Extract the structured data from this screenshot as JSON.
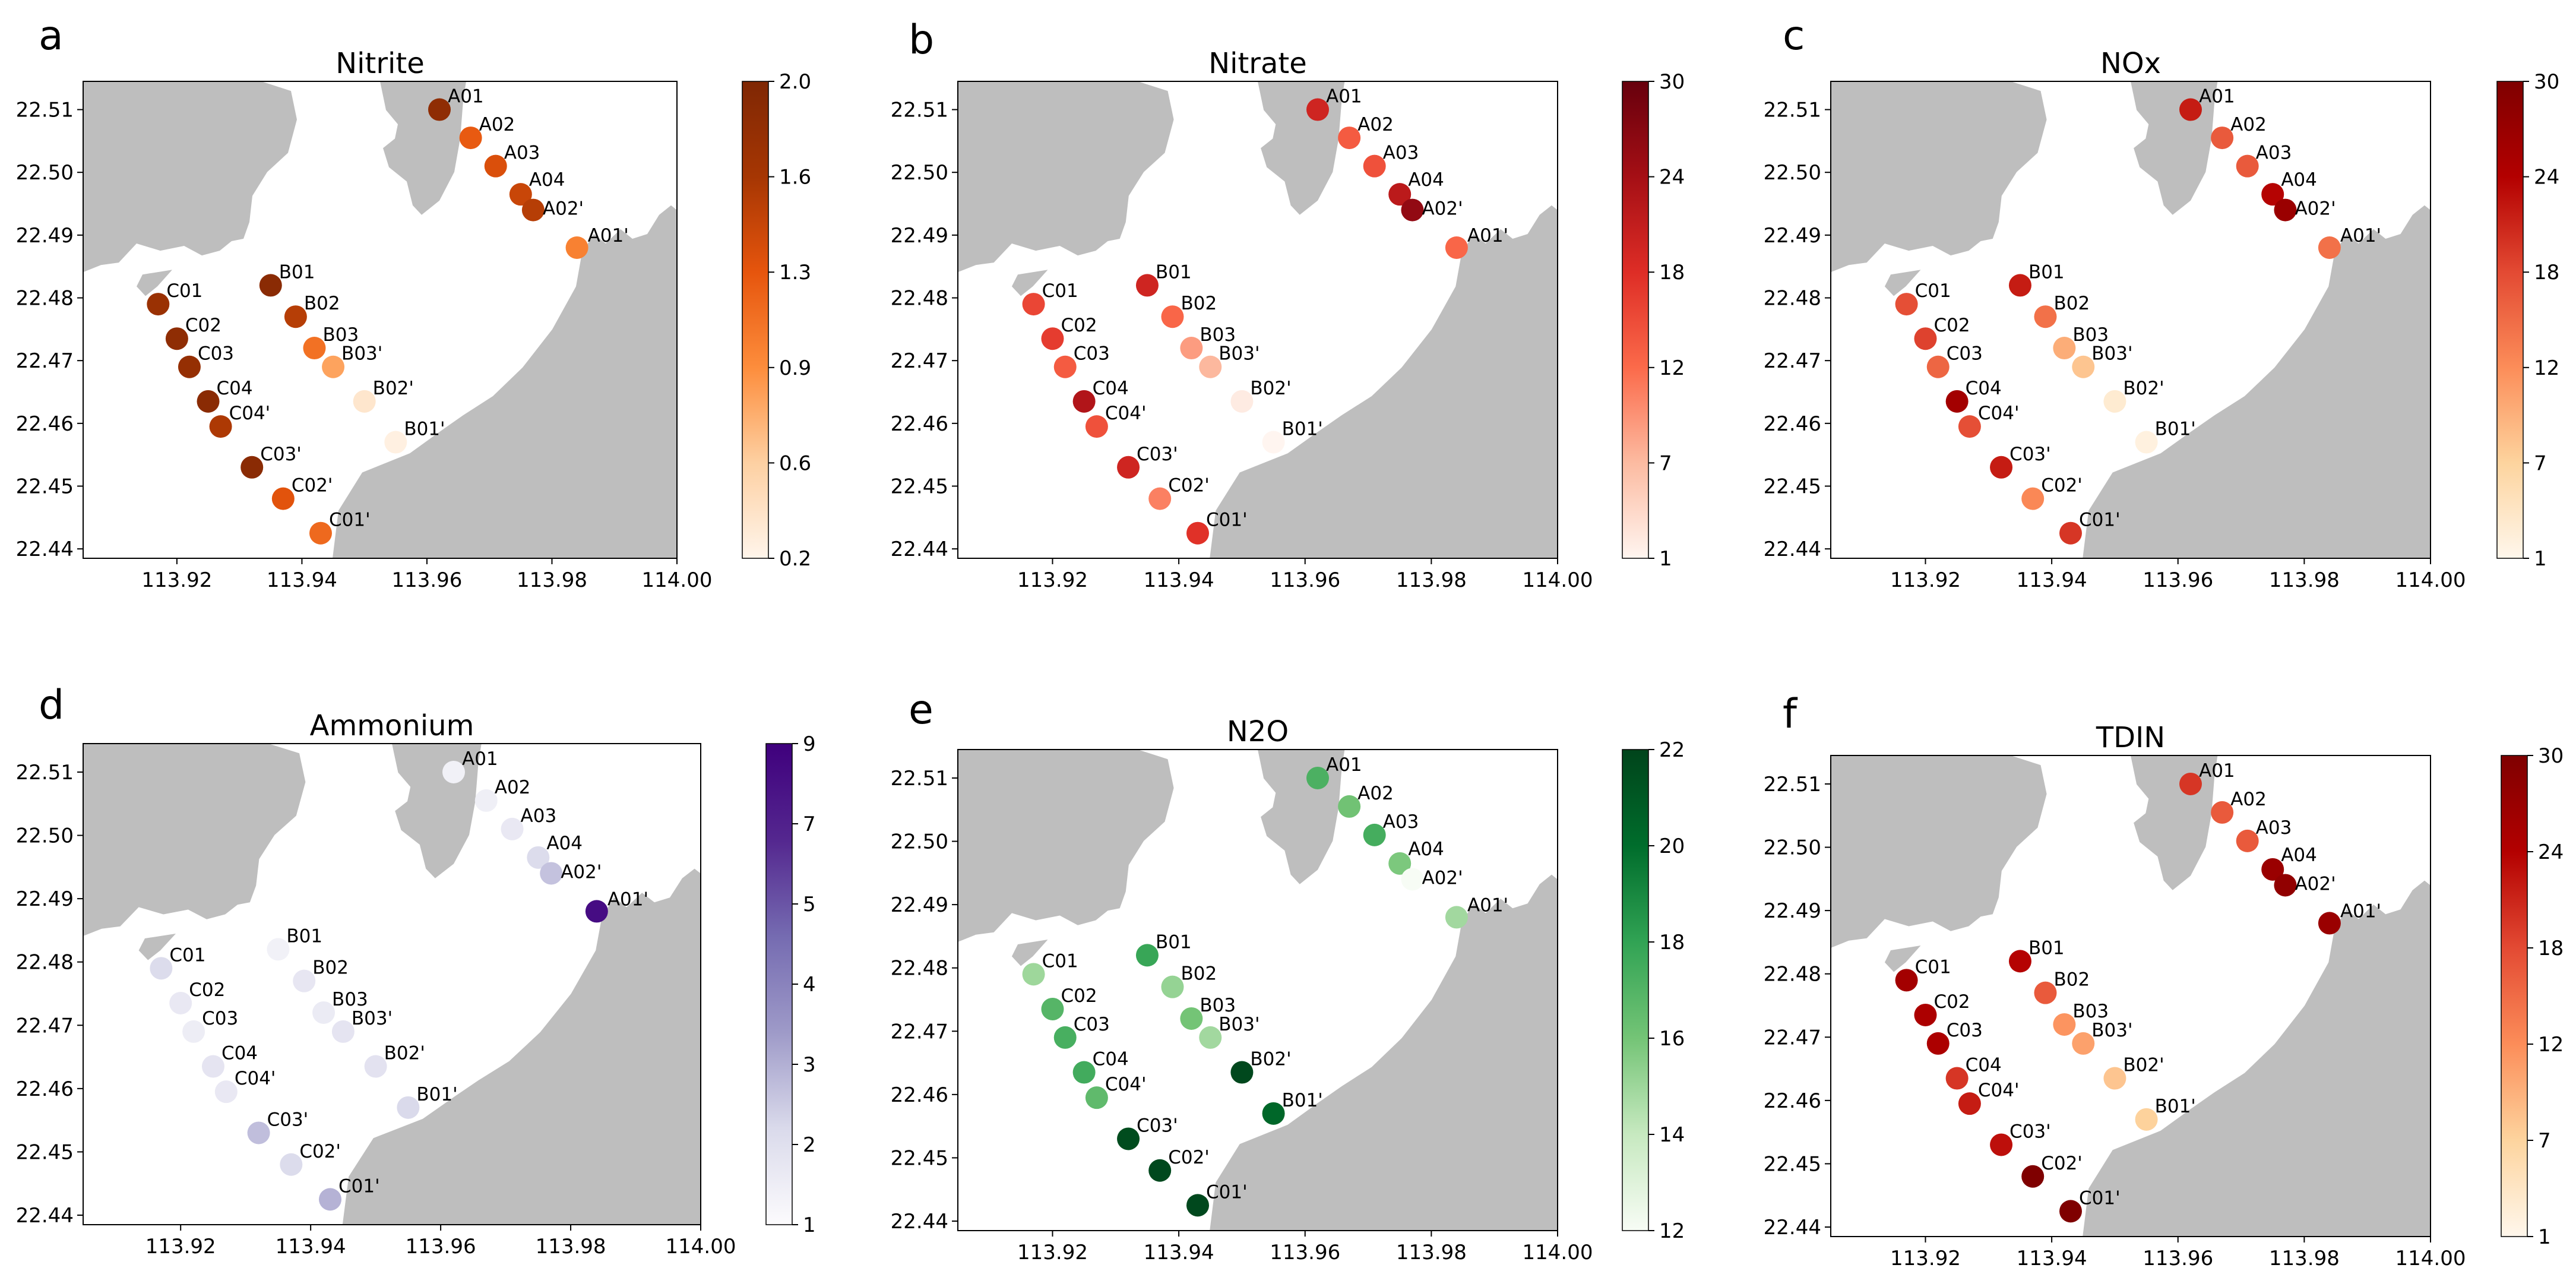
{
  "colors": {
    "land": "#bebebe",
    "Oranges": [
      "#fff5eb",
      "#fdd0a2",
      "#fd8d3c",
      "#e6550d",
      "#a63603",
      "#7f2704"
    ],
    "Reds": [
      "#fff5f0",
      "#fcbba1",
      "#fb6a4a",
      "#de2d26",
      "#a50f15",
      "#67000d"
    ],
    "OrRd": [
      "#fff7ec",
      "#fdd49e",
      "#fc8d59",
      "#e34a33",
      "#b30000",
      "#7f0000"
    ],
    "Purples": [
      "#fcfbfd",
      "#dadaeb",
      "#9e9ac8",
      "#756bb1",
      "#54278f",
      "#3f007d"
    ],
    "Greens": [
      "#f7fcf5",
      "#c7e9c0",
      "#74c476",
      "#31a354",
      "#006d2c",
      "#00441b"
    ]
  },
  "stations": [
    "A01",
    "A02",
    "A03",
    "A04",
    "A02'",
    "A01'",
    "B01",
    "B02",
    "B03",
    "B03'",
    "B02'",
    "B01'",
    "C01",
    "C02",
    "C03",
    "C04",
    "C04'",
    "C03'",
    "C02'",
    "C01'"
  ],
  "station_lon": [
    113.962,
    113.967,
    113.971,
    113.975,
    113.977,
    113.984,
    113.935,
    113.939,
    113.942,
    113.945,
    113.95,
    113.955,
    113.917,
    113.92,
    113.922,
    113.925,
    113.927,
    113.932,
    113.937,
    113.943
  ],
  "station_lat": [
    22.51,
    22.5055,
    22.501,
    22.4965,
    22.494,
    22.488,
    22.482,
    22.477,
    22.472,
    22.469,
    22.4635,
    22.457,
    22.479,
    22.4735,
    22.469,
    22.4635,
    22.4595,
    22.453,
    22.448,
    22.4425
  ],
  "chart_data": [
    {
      "panel_letter": "a",
      "type": "scatter",
      "title": "Nitrite",
      "cmap": "Oranges",
      "xlim": [
        113.905,
        114.0
      ],
      "ylim": [
        22.4385,
        22.5145
      ],
      "xticks": [
        "113.92",
        "113.94",
        "113.96",
        "113.98",
        "114.00"
      ],
      "yticks": [
        "22.44",
        "22.45",
        "22.46",
        "22.47",
        "22.48",
        "22.49",
        "22.50",
        "22.51"
      ],
      "clim": [
        0.2,
        2.0
      ],
      "cbar_ticks": [
        "0.2",
        "0.6",
        "0.9",
        "1.3",
        "1.6",
        "2.0"
      ],
      "values": [
        1.85,
        1.25,
        1.35,
        1.45,
        1.55,
        1.0,
        1.9,
        1.55,
        1.1,
        0.8,
        0.35,
        0.25,
        1.75,
        1.85,
        1.8,
        1.9,
        1.6,
        1.9,
        1.3,
        1.15
      ]
    },
    {
      "panel_letter": "b",
      "type": "scatter",
      "title": "Nitrate",
      "cmap": "Reds",
      "xlim": [
        113.905,
        114.0
      ],
      "ylim": [
        22.4385,
        22.5145
      ],
      "xticks": [
        "113.92",
        "113.94",
        "113.96",
        "113.98",
        "114.00"
      ],
      "yticks": [
        "22.44",
        "22.45",
        "22.46",
        "22.47",
        "22.48",
        "22.49",
        "22.50",
        "22.51"
      ],
      "clim": [
        1,
        30
      ],
      "cbar_ticks": [
        "1",
        "7",
        "12",
        "18",
        "24",
        "30"
      ],
      "values": [
        20,
        14,
        15,
        22,
        26,
        13,
        20,
        13,
        9,
        7,
        2,
        1,
        16,
        17,
        14,
        23,
        15,
        20,
        11,
        18
      ]
    },
    {
      "panel_letter": "c",
      "type": "scatter",
      "title": "NOx",
      "cmap": "OrRd",
      "xlim": [
        113.905,
        114.0
      ],
      "ylim": [
        22.4385,
        22.5145
      ],
      "xticks": [
        "113.92",
        "113.94",
        "113.96",
        "113.98",
        "114.00"
      ],
      "yticks": [
        "22.44",
        "22.45",
        "22.46",
        "22.47",
        "22.48",
        "22.49",
        "22.50",
        "22.51"
      ],
      "clim": [
        1,
        30
      ],
      "cbar_ticks": [
        "1",
        "7",
        "12",
        "18",
        "24",
        "30"
      ],
      "values": [
        22,
        17,
        17,
        24,
        27,
        15,
        22,
        15,
        10,
        8,
        3,
        2,
        18,
        19,
        16,
        26,
        18,
        22,
        13,
        20
      ]
    },
    {
      "panel_letter": "d",
      "type": "scatter",
      "title": "Ammonium",
      "cmap": "Purples",
      "xlim": [
        113.905,
        114.0
      ],
      "ylim": [
        22.4385,
        22.5145
      ],
      "xticks": [
        "113.92",
        "113.94",
        "113.96",
        "113.98",
        "114.00"
      ],
      "yticks": [
        "22.44",
        "22.45",
        "22.46",
        "22.47",
        "22.48",
        "22.49",
        "22.50",
        "22.51"
      ],
      "clim": [
        1,
        9
      ],
      "cbar_ticks": [
        "1",
        "2",
        "3",
        "4",
        "5",
        "7",
        "9"
      ],
      "values": [
        1.5,
        1.6,
        1.9,
        2.5,
        3.2,
        8.5,
        1.5,
        2.0,
        1.8,
        2.1,
        2.2,
        2.6,
        2.5,
        1.9,
        1.7,
        2.1,
        1.9,
        3.3,
        2.5,
        3.6
      ]
    },
    {
      "panel_letter": "e",
      "type": "scatter",
      "title": "N2O",
      "cmap": "Greens",
      "xlim": [
        113.905,
        114.0
      ],
      "ylim": [
        22.4385,
        22.5145
      ],
      "xticks": [
        "113.92",
        "113.94",
        "113.96",
        "113.98",
        "114.00"
      ],
      "yticks": [
        "22.44",
        "22.45",
        "22.46",
        "22.47",
        "22.48",
        "22.49",
        "22.50",
        "22.51"
      ],
      "clim": [
        12,
        22
      ],
      "cbar_ticks": [
        "12",
        "14",
        "16",
        "18",
        "20",
        "22"
      ],
      "values": [
        17.2,
        16.1,
        17.4,
        15.8,
        12.0,
        14.9,
        17.8,
        15.2,
        16.0,
        14.9,
        21.8,
        20.3,
        15.0,
        16.9,
        17.3,
        17.5,
        16.6,
        21.6,
        21.8,
        21.8
      ]
    },
    {
      "panel_letter": "f",
      "type": "scatter",
      "title": "TDIN",
      "cmap": "OrRd",
      "xlim": [
        113.905,
        114.0
      ],
      "ylim": [
        22.4385,
        22.5145
      ],
      "xticks": [
        "113.92",
        "113.94",
        "113.96",
        "113.98",
        "114.00"
      ],
      "yticks": [
        "22.44",
        "22.45",
        "22.46",
        "22.47",
        "22.48",
        "22.49",
        "22.50",
        "22.51"
      ],
      "clim": [
        1,
        30
      ],
      "cbar_ticks": [
        "1",
        "7",
        "12",
        "18",
        "24",
        "30"
      ],
      "values": [
        20,
        17,
        17,
        27,
        28,
        27,
        24,
        17,
        12,
        11,
        8,
        7,
        26,
        25,
        25,
        20,
        22,
        23,
        30,
        30
      ]
    }
  ]
}
